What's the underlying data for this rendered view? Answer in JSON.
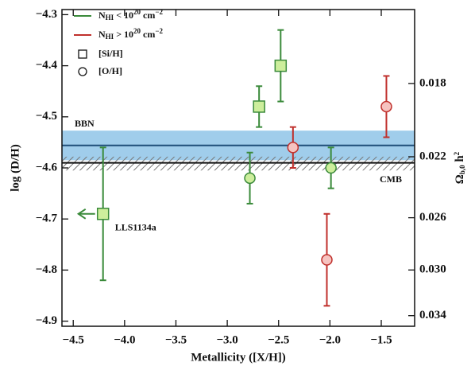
{
  "chart_data": {
    "type": "errorbar",
    "xlabel": "Metallicity ([X/H])",
    "ylabel": "log (D/H)",
    "y2label": [
      "Ω",
      "b,0",
      " h",
      "2"
    ],
    "xlim": [
      -4.61,
      -1.175
    ],
    "ylim": [
      -4.29,
      -4.91
    ],
    "y2lim": [
      0.0147,
      0.035
    ],
    "y2scale": "log",
    "xticks": [
      {
        "value": -4.5,
        "label": "−4.5"
      },
      {
        "value": -4.0,
        "label": "−4.0"
      },
      {
        "value": -3.5,
        "label": "−3.5"
      },
      {
        "value": -3.0,
        "label": "−3.0"
      },
      {
        "value": -2.5,
        "label": "−2.5"
      },
      {
        "value": -2.0,
        "label": "−2.0"
      },
      {
        "value": -1.5,
        "label": "−1.5"
      }
    ],
    "yticks": [
      {
        "value": -4.3,
        "label": "−4.3"
      },
      {
        "value": -4.4,
        "label": "−4.4"
      },
      {
        "value": -4.5,
        "label": "−4.5"
      },
      {
        "value": -4.6,
        "label": "−4.6"
      },
      {
        "value": -4.7,
        "label": "−4.7"
      },
      {
        "value": -4.8,
        "label": "−4.8"
      },
      {
        "value": -4.9,
        "label": "−4.9"
      }
    ],
    "y2ticks": [
      0.018,
      0.022,
      0.026,
      {
        "value": 0.03,
        "label": "0.030"
      },
      0.034
    ],
    "series": [
      {
        "name": [
          "N",
          "HI",
          " < 10",
          "20",
          " cm",
          "−2"
        ],
        "color": "#3a8a3a",
        "fill": "#cdee9c",
        "x": [
          -4.21,
          -2.69,
          -2.48,
          -2.78,
          -1.99
        ],
        "values": [
          -4.69,
          -4.48,
          -4.4,
          -4.62,
          -4.6
        ],
        "errors": [
          0.13,
          0.04,
          0.07,
          0.05,
          0.04
        ],
        "markers": [
          "square",
          "square",
          "square",
          "circle",
          "circle"
        ]
      },
      {
        "name": [
          "N",
          "HI",
          " > 10",
          "20",
          " cm",
          "−2"
        ],
        "color": "#c0302c",
        "fill": "#f6c3c0",
        "x": [
          -2.36,
          -2.03,
          -1.45
        ],
        "values": [
          -4.56,
          -4.78,
          -4.48
        ],
        "errors": [
          0.04,
          0.09,
          0.06
        ],
        "markers": [
          "circle",
          "circle",
          "circle"
        ]
      }
    ],
    "marker_legend": [
      {
        "symbol": "square",
        "label": "[Si/H]"
      },
      {
        "symbol": "circle",
        "label": "[O/H]"
      }
    ],
    "bands": [
      {
        "label": "BBN",
        "value": -4.556,
        "range": [
          -4.527,
          -4.585
        ],
        "color": "#8fc4e8",
        "line": "#1f4e79",
        "style": "solid"
      },
      {
        "label": "CMB",
        "value": -4.59,
        "range": [
          -4.578,
          -4.605
        ],
        "color": "#999999",
        "line": "#111111",
        "style": "hatch"
      }
    ],
    "annotations": [
      {
        "text": "LLS1134a",
        "series": 0,
        "point": 0,
        "arrow": "left"
      }
    ]
  }
}
